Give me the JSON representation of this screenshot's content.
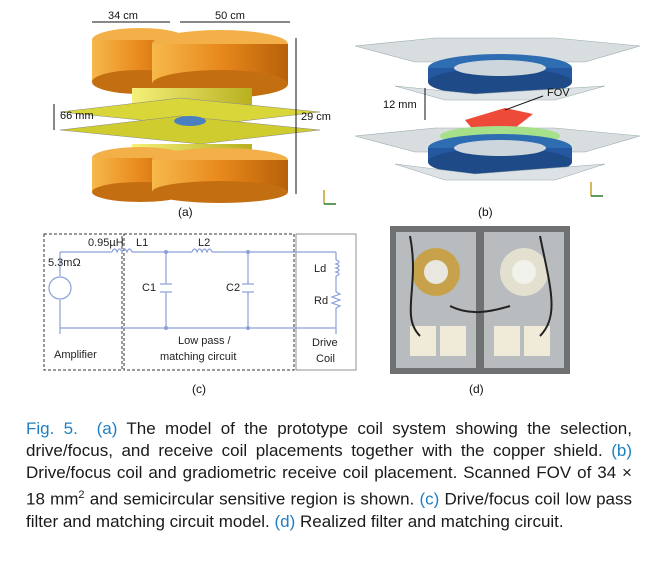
{
  "panel_a": {
    "label": "(a)",
    "dim_top_left": "34 cm",
    "dim_top_right": "50 cm",
    "dim_left": "66 mm",
    "dim_right": "29 cm"
  },
  "panel_b": {
    "label": "(b)",
    "dim_gap": "12 mm",
    "fov_label": "FOV"
  },
  "panel_c": {
    "label": "(c)",
    "l_series": "0.95µH",
    "r_series": "5.3mΩ",
    "l1": "L1",
    "l2": "L2",
    "c1": "C1",
    "c2": "C2",
    "ld": "Ld",
    "rd": "Rd",
    "amplifier": "Amplifier",
    "filter_line1": "Low pass /",
    "filter_line2": "matching circuit",
    "drive_line1": "Drive",
    "drive_line2": "Coil"
  },
  "panel_d": {
    "label": "(d)"
  },
  "caption": {
    "fig": "Fig. 5.",
    "a_tag": "(a)",
    "a_text": " The model of the prototype coil system showing the selection, drive/focus, and receive coil placements together with the copper shield. ",
    "b_tag": "(b)",
    "b_text1": " Drive/focus coil and gradiometric receive coil placement. Scanned FOV of 34 × 18 mm",
    "b_sup": "2",
    "b_text2": " and semicircular sensitive region is shown. ",
    "c_tag": "(c)",
    "c_text": " Drive/focus coil low pass filter and matching circuit model. ",
    "d_tag": "(d)",
    "d_text": " Realized filter and matching circuit."
  },
  "colors": {
    "orange": "#e8891c",
    "yellow": "#e6e03a",
    "blue_coil": "#2f6db3",
    "caption_blue": "#1f7fc4"
  }
}
